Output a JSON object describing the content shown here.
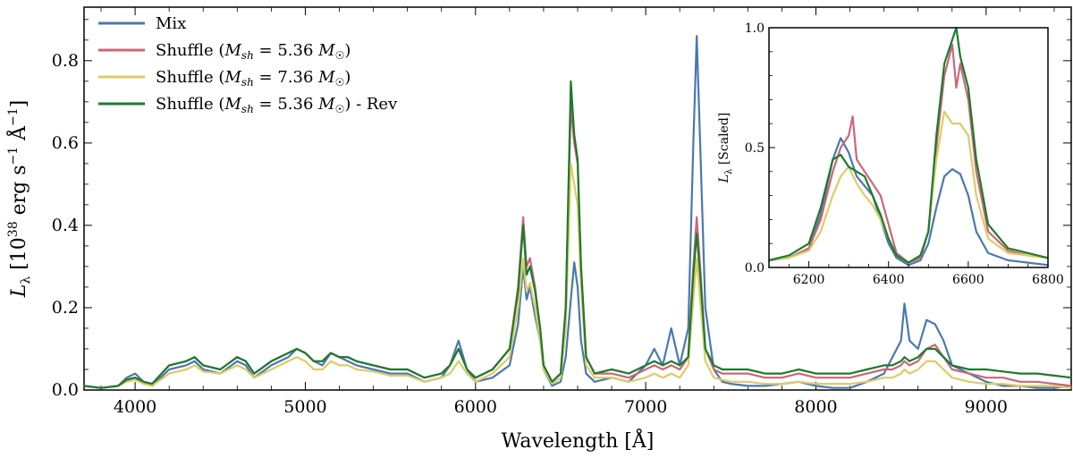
{
  "colors": {
    "mix": "#4a78b0",
    "shuffle_536": "#cc6677",
    "shuffle_736": "#ddcc66",
    "shuffle_536_rev": "#1e7a2e"
  },
  "chart_data": {
    "type": "line",
    "title": "",
    "xlabel": "Wavelength [Å]",
    "ylabel": "L_λ [10^38 erg s^-1 Å^-1]",
    "xlim": [
      3700,
      9500
    ],
    "ylim": [
      0,
      0.93
    ],
    "xticks": [
      4000,
      5000,
      6000,
      7000,
      8000,
      9000
    ],
    "yticks": [
      0.0,
      0.2,
      0.4,
      0.6,
      0.8
    ],
    "xtick_labels": [
      "4000",
      "5000",
      "6000",
      "7000",
      "8000",
      "9000"
    ],
    "ytick_labels": [
      "0.0",
      "0.2",
      "0.4",
      "0.6",
      "0.8"
    ],
    "legend_position": "top-left",
    "grid": false,
    "series": [
      {
        "name": "Mix",
        "label_math": "",
        "label_suffix": "",
        "color_key": "mix",
        "x": [
          3700,
          3800,
          3900,
          3950,
          4000,
          4050,
          4100,
          4200,
          4300,
          4350,
          4400,
          4500,
          4600,
          4650,
          4700,
          4800,
          4900,
          4950,
          5000,
          5050,
          5100,
          5150,
          5200,
          5250,
          5300,
          5400,
          5500,
          5600,
          5700,
          5800,
          5850,
          5900,
          5950,
          6000,
          6100,
          6200,
          6250,
          6280,
          6300,
          6320,
          6350,
          6380,
          6400,
          6450,
          6500,
          6530,
          6560,
          6580,
          6600,
          6620,
          6650,
          6700,
          6800,
          6900,
          7000,
          7050,
          7100,
          7150,
          7200,
          7250,
          7280,
          7300,
          7320,
          7350,
          7400,
          7450,
          7500,
          7600,
          7700,
          7800,
          7900,
          8000,
          8100,
          8200,
          8300,
          8400,
          8450,
          8500,
          8520,
          8550,
          8600,
          8650,
          8700,
          8750,
          8800,
          8900,
          9000,
          9100,
          9200,
          9300,
          9400,
          9500
        ],
        "y": [
          0.01,
          0.005,
          0.01,
          0.03,
          0.04,
          0.02,
          0.01,
          0.05,
          0.06,
          0.07,
          0.05,
          0.04,
          0.07,
          0.06,
          0.03,
          0.06,
          0.08,
          0.1,
          0.09,
          0.07,
          0.06,
          0.09,
          0.08,
          0.07,
          0.06,
          0.05,
          0.04,
          0.04,
          0.02,
          0.03,
          0.06,
          0.12,
          0.05,
          0.02,
          0.03,
          0.06,
          0.16,
          0.3,
          0.22,
          0.25,
          0.18,
          0.12,
          0.05,
          0.01,
          0.02,
          0.08,
          0.22,
          0.31,
          0.25,
          0.12,
          0.04,
          0.02,
          0.03,
          0.02,
          0.06,
          0.1,
          0.06,
          0.15,
          0.06,
          0.15,
          0.6,
          0.86,
          0.6,
          0.2,
          0.05,
          0.02,
          0.015,
          0.01,
          0.01,
          0.015,
          0.02,
          0.01,
          0.005,
          0.005,
          0.02,
          0.04,
          0.08,
          0.12,
          0.21,
          0.12,
          0.1,
          0.17,
          0.16,
          0.12,
          0.06,
          0.04,
          0.02,
          0.01,
          0.01,
          0.005,
          0.005,
          0.01
        ]
      },
      {
        "name": "Shuffle (",
        "label_math": "M_sh = 5.36 M_☉",
        "label_suffix": ")",
        "color_key": "shuffle_536",
        "x": [
          3700,
          3800,
          3900,
          3950,
          4000,
          4050,
          4100,
          4200,
          4300,
          4350,
          4400,
          4500,
          4600,
          4650,
          4700,
          4800,
          4900,
          4950,
          5000,
          5050,
          5100,
          5150,
          5200,
          5250,
          5300,
          5400,
          5500,
          5600,
          5700,
          5800,
          5850,
          5900,
          5950,
          6000,
          6100,
          6200,
          6250,
          6280,
          6300,
          6320,
          6350,
          6380,
          6400,
          6450,
          6500,
          6530,
          6560,
          6580,
          6600,
          6620,
          6650,
          6700,
          6800,
          6900,
          7000,
          7050,
          7100,
          7150,
          7200,
          7250,
          7280,
          7300,
          7320,
          7350,
          7400,
          7450,
          7500,
          7600,
          7700,
          7800,
          7900,
          8000,
          8100,
          8200,
          8300,
          8400,
          8450,
          8500,
          8520,
          8550,
          8600,
          8650,
          8700,
          8750,
          8800,
          8900,
          9000,
          9100,
          9200,
          9300,
          9400,
          9500
        ],
        "y": [
          0.01,
          0.005,
          0.01,
          0.025,
          0.03,
          0.02,
          0.015,
          0.06,
          0.07,
          0.08,
          0.06,
          0.05,
          0.08,
          0.07,
          0.04,
          0.07,
          0.09,
          0.1,
          0.09,
          0.07,
          0.07,
          0.09,
          0.08,
          0.08,
          0.07,
          0.06,
          0.05,
          0.05,
          0.03,
          0.04,
          0.06,
          0.1,
          0.05,
          0.03,
          0.05,
          0.1,
          0.25,
          0.42,
          0.3,
          0.32,
          0.25,
          0.15,
          0.06,
          0.02,
          0.04,
          0.2,
          0.69,
          0.6,
          0.55,
          0.3,
          0.08,
          0.04,
          0.04,
          0.03,
          0.05,
          0.06,
          0.05,
          0.06,
          0.05,
          0.08,
          0.3,
          0.42,
          0.3,
          0.1,
          0.05,
          0.04,
          0.04,
          0.04,
          0.03,
          0.03,
          0.04,
          0.03,
          0.03,
          0.03,
          0.04,
          0.05,
          0.05,
          0.06,
          0.07,
          0.06,
          0.07,
          0.1,
          0.11,
          0.08,
          0.05,
          0.04,
          0.03,
          0.03,
          0.02,
          0.02,
          0.015,
          0.01
        ]
      },
      {
        "name": "Shuffle (",
        "label_math": "M_sh = 7.36 M_☉",
        "label_suffix": ")",
        "color_key": "shuffle_736",
        "x": [
          3700,
          3800,
          3900,
          3950,
          4000,
          4050,
          4100,
          4200,
          4300,
          4350,
          4400,
          4500,
          4600,
          4650,
          4700,
          4800,
          4900,
          4950,
          5000,
          5050,
          5100,
          5150,
          5200,
          5250,
          5300,
          5400,
          5500,
          5600,
          5700,
          5800,
          5850,
          5900,
          5950,
          6000,
          6100,
          6200,
          6250,
          6280,
          6300,
          6320,
          6350,
          6380,
          6400,
          6450,
          6500,
          6530,
          6560,
          6580,
          6600,
          6620,
          6650,
          6700,
          6800,
          6900,
          7000,
          7050,
          7100,
          7150,
          7200,
          7250,
          7280,
          7300,
          7320,
          7350,
          7400,
          7450,
          7500,
          7600,
          7700,
          7800,
          7900,
          8000,
          8100,
          8200,
          8300,
          8400,
          8450,
          8500,
          8520,
          8550,
          8600,
          8650,
          8700,
          8750,
          8800,
          8900,
          9000,
          9100,
          9200,
          9300,
          9400,
          9500
        ],
        "y": [
          0.01,
          0.005,
          0.01,
          0.02,
          0.025,
          0.015,
          0.01,
          0.04,
          0.05,
          0.06,
          0.045,
          0.04,
          0.06,
          0.05,
          0.03,
          0.05,
          0.07,
          0.08,
          0.07,
          0.05,
          0.05,
          0.07,
          0.06,
          0.06,
          0.05,
          0.045,
          0.035,
          0.035,
          0.02,
          0.03,
          0.04,
          0.07,
          0.04,
          0.02,
          0.04,
          0.08,
          0.2,
          0.32,
          0.24,
          0.26,
          0.2,
          0.12,
          0.05,
          0.015,
          0.03,
          0.15,
          0.55,
          0.5,
          0.45,
          0.25,
          0.06,
          0.03,
          0.03,
          0.02,
          0.03,
          0.04,
          0.03,
          0.04,
          0.03,
          0.06,
          0.22,
          0.32,
          0.22,
          0.07,
          0.03,
          0.025,
          0.02,
          0.02,
          0.015,
          0.015,
          0.02,
          0.015,
          0.015,
          0.015,
          0.02,
          0.03,
          0.03,
          0.04,
          0.05,
          0.04,
          0.05,
          0.07,
          0.07,
          0.05,
          0.03,
          0.02,
          0.015,
          0.015,
          0.01,
          0.01,
          0.01,
          0.005
        ]
      },
      {
        "name": "Shuffle (",
        "label_math": "M_sh = 5.36 M_☉",
        "label_suffix": ") - Rev",
        "color_key": "shuffle_536_rev",
        "x": [
          3700,
          3800,
          3900,
          3950,
          4000,
          4050,
          4100,
          4200,
          4300,
          4350,
          4400,
          4500,
          4600,
          4650,
          4700,
          4800,
          4900,
          4950,
          5000,
          5050,
          5100,
          5150,
          5200,
          5250,
          5300,
          5400,
          5500,
          5600,
          5700,
          5800,
          5850,
          5900,
          5950,
          6000,
          6100,
          6200,
          6250,
          6280,
          6300,
          6320,
          6350,
          6380,
          6400,
          6450,
          6500,
          6530,
          6560,
          6580,
          6600,
          6620,
          6650,
          6700,
          6800,
          6900,
          7000,
          7050,
          7100,
          7150,
          7200,
          7250,
          7280,
          7300,
          7320,
          7350,
          7400,
          7450,
          7500,
          7600,
          7700,
          7800,
          7900,
          8000,
          8100,
          8200,
          8300,
          8400,
          8450,
          8500,
          8520,
          8550,
          8600,
          8650,
          8700,
          8750,
          8800,
          8900,
          9000,
          9100,
          9200,
          9300,
          9400,
          9500
        ],
        "y": [
          0.01,
          0.005,
          0.01,
          0.025,
          0.03,
          0.02,
          0.015,
          0.06,
          0.07,
          0.08,
          0.06,
          0.05,
          0.08,
          0.07,
          0.04,
          0.07,
          0.09,
          0.1,
          0.09,
          0.07,
          0.07,
          0.09,
          0.08,
          0.08,
          0.07,
          0.06,
          0.05,
          0.05,
          0.03,
          0.04,
          0.06,
          0.1,
          0.05,
          0.03,
          0.05,
          0.1,
          0.24,
          0.4,
          0.28,
          0.3,
          0.24,
          0.15,
          0.06,
          0.02,
          0.04,
          0.2,
          0.75,
          0.62,
          0.56,
          0.3,
          0.08,
          0.04,
          0.05,
          0.04,
          0.06,
          0.07,
          0.06,
          0.07,
          0.06,
          0.08,
          0.28,
          0.38,
          0.28,
          0.1,
          0.06,
          0.05,
          0.05,
          0.05,
          0.04,
          0.04,
          0.05,
          0.04,
          0.04,
          0.04,
          0.05,
          0.06,
          0.06,
          0.07,
          0.08,
          0.07,
          0.08,
          0.1,
          0.1,
          0.08,
          0.06,
          0.05,
          0.05,
          0.045,
          0.04,
          0.04,
          0.035,
          0.03
        ]
      }
    ],
    "inset": {
      "type": "line",
      "ylabel": "L_λ [Scaled]",
      "xlim": [
        6100,
        6800
      ],
      "ylim": [
        0,
        1.0
      ],
      "xticks": [
        6200,
        6400,
        6600,
        6800
      ],
      "yticks": [
        0.0,
        0.5,
        1.0
      ],
      "xtick_labels": [
        "6200",
        "6400",
        "6600",
        "6800"
      ],
      "ytick_labels": [
        "0.0",
        "0.5",
        "1.0"
      ],
      "series": [
        {
          "color_key": "mix",
          "x": [
            6100,
            6150,
            6200,
            6230,
            6260,
            6280,
            6300,
            6320,
            6340,
            6360,
            6380,
            6400,
            6420,
            6450,
            6480,
            6500,
            6520,
            6540,
            6560,
            6580,
            6600,
            6620,
            6650,
            6700,
            6750,
            6800
          ],
          "y": [
            0.03,
            0.04,
            0.08,
            0.22,
            0.45,
            0.54,
            0.48,
            0.38,
            0.34,
            0.3,
            0.2,
            0.1,
            0.04,
            0.01,
            0.03,
            0.1,
            0.25,
            0.38,
            0.41,
            0.39,
            0.3,
            0.15,
            0.06,
            0.03,
            0.02,
            0.01
          ]
        },
        {
          "color_key": "shuffle_536",
          "x": [
            6100,
            6150,
            6200,
            6230,
            6260,
            6280,
            6300,
            6310,
            6320,
            6340,
            6360,
            6380,
            6400,
            6420,
            6450,
            6480,
            6500,
            6520,
            6540,
            6560,
            6570,
            6580,
            6600,
            6620,
            6650,
            6700,
            6750,
            6800
          ],
          "y": [
            0.03,
            0.04,
            0.08,
            0.2,
            0.4,
            0.5,
            0.55,
            0.63,
            0.45,
            0.4,
            0.35,
            0.3,
            0.18,
            0.06,
            0.02,
            0.04,
            0.15,
            0.5,
            0.8,
            0.93,
            0.75,
            0.85,
            0.7,
            0.4,
            0.15,
            0.07,
            0.05,
            0.04
          ]
        },
        {
          "color_key": "shuffle_736",
          "x": [
            6100,
            6150,
            6200,
            6230,
            6260,
            6280,
            6300,
            6320,
            6340,
            6360,
            6380,
            6400,
            6420,
            6450,
            6480,
            6500,
            6520,
            6540,
            6560,
            6580,
            6600,
            6620,
            6650,
            6700,
            6750,
            6800
          ],
          "y": [
            0.03,
            0.04,
            0.07,
            0.15,
            0.3,
            0.38,
            0.42,
            0.35,
            0.3,
            0.26,
            0.2,
            0.12,
            0.05,
            0.02,
            0.05,
            0.15,
            0.45,
            0.65,
            0.6,
            0.6,
            0.55,
            0.3,
            0.12,
            0.06,
            0.05,
            0.04
          ]
        },
        {
          "color_key": "shuffle_536_rev",
          "x": [
            6100,
            6150,
            6200,
            6230,
            6260,
            6280,
            6300,
            6320,
            6340,
            6360,
            6380,
            6400,
            6420,
            6450,
            6480,
            6500,
            6520,
            6540,
            6560,
            6570,
            6580,
            6600,
            6620,
            6650,
            6700,
            6750,
            6800
          ],
          "y": [
            0.03,
            0.05,
            0.1,
            0.25,
            0.45,
            0.47,
            0.42,
            0.4,
            0.38,
            0.3,
            0.22,
            0.12,
            0.05,
            0.02,
            0.05,
            0.15,
            0.55,
            0.85,
            0.95,
            1.0,
            0.88,
            0.75,
            0.45,
            0.18,
            0.08,
            0.06,
            0.04
          ]
        }
      ]
    }
  }
}
